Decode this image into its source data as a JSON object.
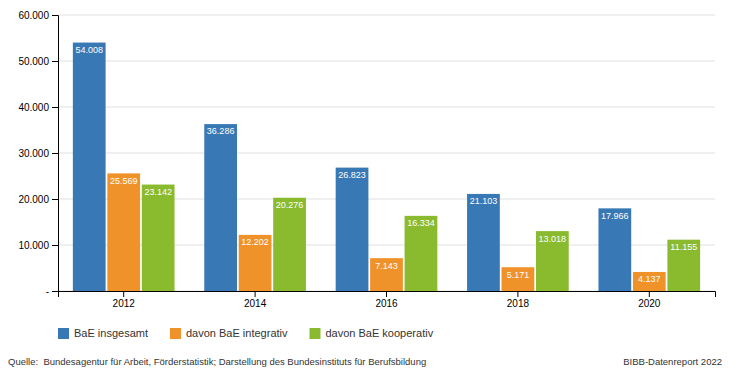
{
  "chart_data": {
    "type": "bar",
    "categories": [
      "2012",
      "2014",
      "2016",
      "2018",
      "2020"
    ],
    "series": [
      {
        "name": "BaE insgesamt",
        "color": "#3878b4",
        "values": [
          54008,
          36286,
          26823,
          21103,
          17966
        ],
        "value_labels": [
          "54.008",
          "36.286",
          "26.823",
          "21.103",
          "17.966"
        ]
      },
      {
        "name": "davon BaE integrativ",
        "color": "#f0922a",
        "values": [
          25569,
          12202,
          7143,
          5171,
          4137
        ],
        "value_labels": [
          "25.569",
          "12.202",
          "7.143",
          "5.171",
          "4.137"
        ]
      },
      {
        "name": "davon BaE kooperativ",
        "color": "#8aba2e",
        "values": [
          23142,
          20276,
          16334,
          13018,
          11155
        ],
        "value_labels": [
          "23.142",
          "20.276",
          "16.334",
          "13.018",
          "11.155"
        ]
      }
    ],
    "ylim": [
      0,
      60000
    ],
    "yticks": [
      {
        "value": 0,
        "label": "-"
      },
      {
        "value": 10000,
        "label": "10.000"
      },
      {
        "value": 20000,
        "label": "20.000"
      },
      {
        "value": 30000,
        "label": "30.000"
      },
      {
        "value": 40000,
        "label": "40.000"
      },
      {
        "value": 50000,
        "label": "50.000"
      },
      {
        "value": 60000,
        "label": "60.000"
      }
    ],
    "grid": true,
    "legend": "lower left",
    "data_labels": true,
    "annotations": [
      "Quelle:  Bundesagentur für Arbeit, Förderstatistik; Darstellung des Bundesinstituts für Berufsbildung",
      "BIBB-Datenreport 2022"
    ]
  }
}
